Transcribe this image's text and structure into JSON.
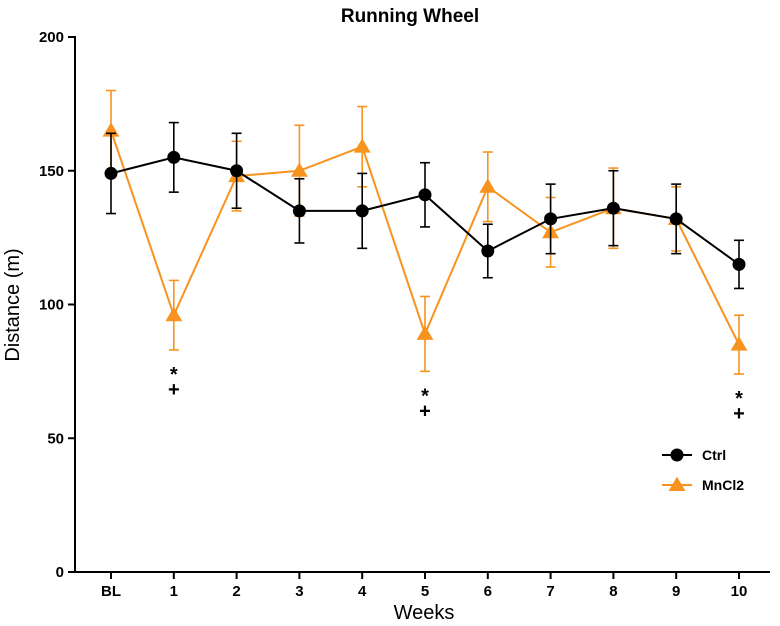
{
  "chart_data": {
    "type": "line",
    "title": "Running Wheel",
    "xlabel": "Weeks",
    "ylabel": "Distance (m)",
    "ylim": [
      0,
      200
    ],
    "yticks": [
      0,
      50,
      100,
      150,
      200
    ],
    "categories": [
      "BL",
      "1",
      "2",
      "3",
      "4",
      "5",
      "6",
      "7",
      "8",
      "9",
      "10"
    ],
    "series": [
      {
        "name": "Ctrl",
        "color": "#000000",
        "marker": "circle",
        "values": [
          149,
          155,
          150,
          135,
          135,
          141,
          120,
          132,
          136,
          132,
          115
        ],
        "errors": [
          15,
          13,
          14,
          12,
          14,
          12,
          10,
          13,
          14,
          13,
          9
        ]
      },
      {
        "name": "MnCl2",
        "color": "#F7931E",
        "marker": "triangle",
        "values": [
          165,
          96,
          148,
          150,
          159,
          89,
          144,
          127,
          136,
          132,
          85
        ],
        "errors": [
          15,
          13,
          13,
          17,
          15,
          14,
          13,
          13,
          15,
          12,
          11
        ]
      }
    ],
    "annotations": [
      {
        "category": "1",
        "lines": [
          "*",
          "+"
        ]
      },
      {
        "category": "5",
        "lines": [
          "*",
          "+"
        ]
      },
      {
        "category": "10",
        "lines": [
          "*",
          "+"
        ]
      }
    ],
    "legend_position": "bottom-right"
  }
}
